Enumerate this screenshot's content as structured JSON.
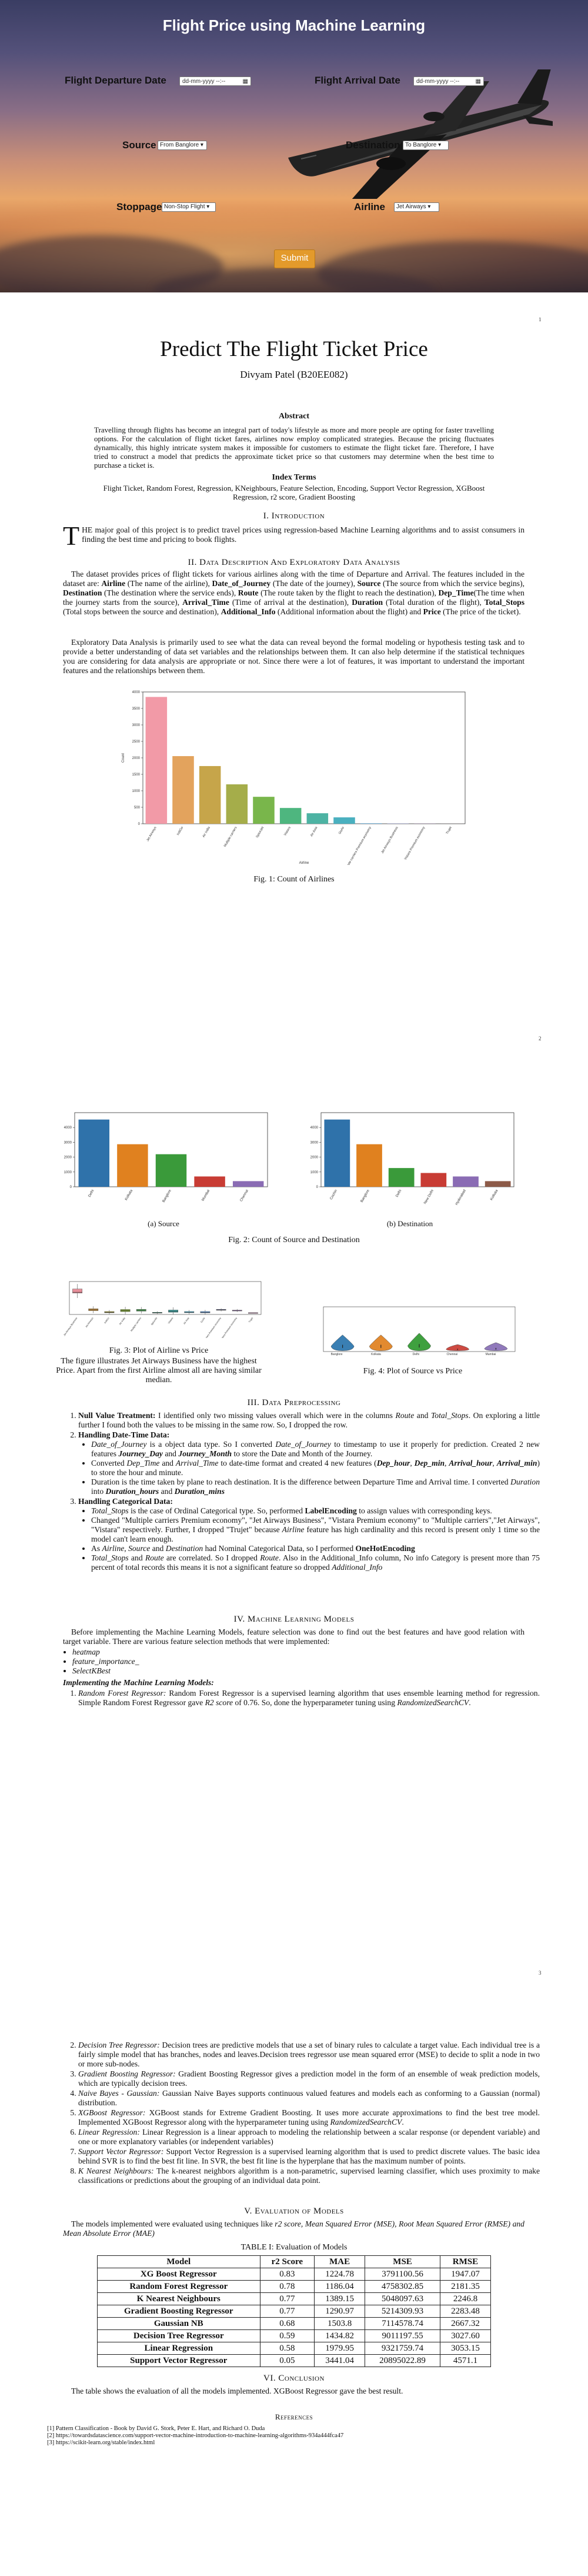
{
  "form": {
    "title": "Flight Price using Machine Learning",
    "departure_label": "Flight Departure Date",
    "departure_placeholder": "dd-mm-yyyy --:--",
    "arrival_label": "Flight Arrival Date",
    "arrival_placeholder": "dd-mm-yyyy --:--",
    "source_label": "Source",
    "source_value": "From Banglore",
    "destination_label": "Destination",
    "destination_value": "To Banglore",
    "stoppage_label": "Stoppage",
    "stoppage_value": "Non-Stop Flight",
    "airline_label": "Airline",
    "airline_value": "Jet Airways",
    "submit_label": "Submit"
  },
  "paper": {
    "page_numbers": [
      "1",
      "2",
      "3"
    ],
    "title": "Predict The Flight Ticket Price",
    "author": "Divyam Patel (B20EE082)",
    "abstract_head": "Abstract",
    "abstract": "Travelling through flights has become an integral part of today's lifestyle as more and more people are opting for faster travelling options. For the calculation of flight ticket fares, airlines now employ complicated strategies. Because the pricing fluctuates dynamically, this highly intricate system makes it impossible for customers to estimate the flight ticket fare. Therefore, I have tried to construct a model that predicts the approximate ticket price so that customers may determine when the best time to purchase a ticket is.",
    "index_head": "Index Terms",
    "index_terms": "Flight Ticket, Random Forest, Regression, KNeighbours, Feature Selection, Encoding, Support Vector Regression, XGBoost Regression, r2 score, Gradient Boosting",
    "sec1_num": "I.",
    "sec1_title": "Introduction",
    "intro_dropcap": "T",
    "intro_text": "HE major goal of this project is to predict travel prices using regression-based Machine Learning algorithms and to assist consumers in finding the best time and pricing to book flights.",
    "sec2_num": "II.",
    "sec2_title": "Data Description And Exploratory Data Analysis",
    "data_p1_a": "The dataset provides prices of flight tickets for various airlines along with the time of Departure and Arrival. The features included in the dataset are: ",
    "data_p1_b": "Airline",
    "data_p1_c": " (The name of the airline), ",
    "data_p1_d": "Date_of_Journey",
    "data_p1_e": " (The date of the journey), ",
    "data_p1_f": "Source",
    "data_p1_g": " (The source from which the service begins), ",
    "data_p1_h": "Destination",
    "data_p1_i": " (The destination where the service ends), ",
    "data_p1_j": "Route",
    "data_p1_k": " (The route taken by the flight to reach the destination), ",
    "data_p1_l": "Dep_Time",
    "data_p1_m": "(The time when the journey starts from the source), ",
    "data_p1_n": "Arrival_Time",
    "data_p1_o": " (Time of arrival at the destination), ",
    "data_p1_p": "Duration",
    "data_p1_q": " (Total duration of the flight), ",
    "data_p1_r": "Total_Stops",
    "data_p1_s": " (Total stops between the source and destination), ",
    "data_p1_t": "Additional_Info",
    "data_p1_u": " (Additional information about the flight) and ",
    "data_p1_v": "Price",
    "data_p1_w": " (The price of the ticket).",
    "data_p2": "Exploratory Data Analysis is primarily used to see what the data can reveal beyond the formal modeling or hypothesis testing task and to provide a better understanding of data set variables and the relationships between them. It can also help determine if the statistical techniques you are considering for data analysis are appropriate or not. Since there were a lot of features, it was important to understand the important features and the relationships between them.",
    "fig1_caption": "Fig. 1: Count of Airlines",
    "fig2a_caption": "(a) Source",
    "fig2b_caption": "(b) Destination",
    "fig2_caption": "Fig. 2: Count of Source and Destination",
    "fig3_caption": "Fig. 3: Plot of Airline vs Price",
    "fig3_note": "The figure illustrates Jet Airways Business have the highest Price. Apart from the first Airline almost all are having similar median.",
    "fig4_caption": "Fig. 4: Plot of Source vs Price",
    "sec3_num": "III.",
    "sec3_title": "Data Preprocessing",
    "pre1_head": "Null Value Treatment:",
    "pre1_text_a": " I identified only two missing values overall which were in the columns ",
    "pre1_text_b": "Route",
    "pre1_text_c": " and ",
    "pre1_text_d": "Total_Stops",
    "pre1_text_e": ". On exploring a little further I found both the values to be missing in the same row. So, I dropped the row.",
    "pre2_head": "Handling Date-Time Data:",
    "pre2_b1_a": "Date_of_Journey",
    "pre2_b1_b": " is a object data type. So I converted ",
    "pre2_b1_c": "Date_of_Journey",
    "pre2_b1_d": " to timestamp to use it properly for prediction. Created 2 new features ",
    "pre2_b1_e": "Journey_Day",
    "pre2_b1_f": " and ",
    "pre2_b1_g": "Journey_Month",
    "pre2_b1_h": " to store the Date and Month of the Journey.",
    "pre2_b2_a": "Converted ",
    "pre2_b2_b": "Dep_Time",
    "pre2_b2_c": " and ",
    "pre2_b2_d": "Arrival_Time",
    "pre2_b2_e": " to date-time format and created 4 new features (",
    "pre2_b2_f": "Dep_hour",
    "pre2_b2_g": ", ",
    "pre2_b2_h": "Dep_min",
    "pre2_b2_i": ", ",
    "pre2_b2_j": "Arrival_hour",
    "pre2_b2_k": ", ",
    "pre2_b2_l": "Arrival_min",
    "pre2_b2_m": ") to store the hour and minute.",
    "pre2_b3_a": "Duration is the time taken by plane to reach destination. It is the difference between Departure Time and Arrival time. I converted ",
    "pre2_b3_b": "Duration",
    "pre2_b3_c": " into ",
    "pre2_b3_d": "Duration_hours",
    "pre2_b3_e": " and ",
    "pre2_b3_f": "Duration_mins",
    "pre3_head": "Handling Categorical Data:",
    "pre3_b1_a": "Total_Stops",
    "pre3_b1_b": " is the case of Ordinal Categorical type. So, performed ",
    "pre3_b1_c": "LabelEncoding",
    "pre3_b1_d": " to assign values with corresponding keys.",
    "pre3_b2": "Changed \"Multiple carriers Premium economy\", \"Jet Airways Business\", \"Vistara Premium economy\" to \"Multiple carriers\",\"Jet Airways\", \"Vistara\" respectively. Further, I dropped \"Trujet\" because ",
    "pre3_b2_b": "Airline",
    "pre3_b2_c": " feature has high cardinality and this record is present only 1 time so the model can't learn enough.",
    "pre3_b3_a": "As ",
    "pre3_b3_b": "Airline",
    "pre3_b3_c": ", ",
    "pre3_b3_d": "Source",
    "pre3_b3_e": " and ",
    "pre3_b3_f": "Destination",
    "pre3_b3_g": " had Nominal Categorical Data, so I performed ",
    "pre3_b3_h": "OneHotEncoding",
    "pre3_b4_a": "Total_Stops",
    "pre3_b4_b": " and ",
    "pre3_b4_c": "Route",
    "pre3_b4_d": " are correlated. So I dropped ",
    "pre3_b4_e": "Route",
    "pre3_b4_f": ". Also in the Additional_Info column, No info Category is present more than 75 percent of total records this means it is not a significant feature so dropped ",
    "pre3_b4_g": "Additional_Info",
    "sec4_num": "IV.",
    "sec4_title": "Machine Learning Models",
    "ml_intro": "Before implementing the Machine Learning Models, feature selection was done to find out the best features and have good relation with target variable. There are various feature selection methods that were implemented:",
    "ml_feat": [
      "heatmap",
      "feature_importance_",
      "SelectKBest"
    ],
    "ml_impl_head": "Implementing the Machine Learning Models:",
    "m1_head": "Random Forest Regressor:",
    "m1_text_a": " Random Forest Regressor is a supervised learning algorithm that uses ensemble learning method for regression. Simple Random Forest Regressor gave ",
    "m1_text_b": "R2 score",
    "m1_text_c": " of 0.76. So, done the hyperparameter tuning using ",
    "m1_text_d": "RandomizedSearchCV",
    "m1_text_e": ".",
    "m2_head": "Decision Tree Regressor:",
    "m2_text": " Decision trees are predictive models that use a set of binary rules to calculate a target value. Each individual tree is a fairly simple model that has branches, nodes and leaves.Decision trees regressor use mean squared error (MSE) to decide to split a node in two or more sub-nodes.",
    "m3_head": "Gradient Boosting Regressor:",
    "m3_text": " Gradient Boosting Regressor gives a prediction model in the form of an ensemble of weak prediction models, which are typically decision trees.",
    "m4_head": "Naive Bayes - Gaussian:",
    "m4_text": " Gaussian Naive Bayes supports continuous valued features and models each as conforming to a Gaussian (normal) distribution.",
    "m5_head": "XGBoost Regressor:",
    "m5_text_a": " XGBoost stands for Extreme Gradient Boosting. It uses more accurate approximations to find the best tree model. Implemented XGBoost Regressor along with the hyperparameter tuning using ",
    "m5_text_b": "RandomizedSearchCV",
    "m5_text_c": ".",
    "m6_head": "Linear Regression:",
    "m6_text": " Linear Regression is a linear approach to modeling the relationship between a scalar response (or dependent variable) and one or more explanatory variables (or independent variables)",
    "m7_head": "Support Vector Regressor:",
    "m7_text": " Support Vector Regression is a supervised learning algorithm that is used to predict discrete values. The basic idea behind SVR is to find the best fit line. In SVR, the best fit line is the hyperplane that has the maximum number of points.",
    "m8_head": "K Nearest Neighbours:",
    "m8_text": " The k-nearest neighbors algorithm is a non-parametric, supervised learning classifier, which uses proximity to make classifications or predictions about the grouping of an individual data point.",
    "sec5_num": "V.",
    "sec5_title": "Evaluation of Models",
    "eval_intro_a": "The models implemented were evaluated using techniques like ",
    "eval_intro_b": "r2 score, Mean Squared Error (MSE), Root Mean Squared Error (RMSE) and Mean Absolute Error (MAE)",
    "table_caption": "TABLE I: Evaluation of Models",
    "table_headers": [
      "Model",
      "r2 Score",
      "MAE",
      "MSE",
      "RMSE"
    ],
    "table_rows": [
      [
        "XG Boost Regressor",
        "0.83",
        "1224.78",
        "3791100.56",
        "1947.07"
      ],
      [
        "Random Forest Regressor",
        "0.78",
        "1186.04",
        "4758302.85",
        "2181.35"
      ],
      [
        "K Nearest Neighbours",
        "0.77",
        "1389.15",
        "5048097.63",
        "2246.8"
      ],
      [
        "Gradient Boosting Regressor",
        "0.77",
        "1290.97",
        "5214309.93",
        "2283.48"
      ],
      [
        "Gaussian NB",
        "0.68",
        "1503.8",
        "7114578.74",
        "2667.32"
      ],
      [
        "Decision Tree Regressor",
        "0.59",
        "1434.82",
        "9011197.55",
        "3027.60"
      ],
      [
        "Linear Regression",
        "0.58",
        "1979.95",
        "9321759.74",
        "3053.15"
      ],
      [
        "Support Vector Regressor",
        "0.05",
        "3441.04",
        "20895022.89",
        "4571.1"
      ]
    ],
    "sec6_num": "VI.",
    "sec6_title": "Conclusion",
    "conclusion": "The table shows the evaluation of all the models implemented. XGBoost Regressor gave the best result.",
    "refs_head": "References",
    "refs": [
      "[1]  Pattern Classification - Book by David G. Stork, Peter E. Hart, and Richard O. Duda",
      "[2]  https://towardsdatascience.com/support-vector-machine-introduction-to-machine-learning-algorithms-934a444fca47",
      "[3]  https://scikit-learn.org/stable/index.html"
    ]
  },
  "chart_data": [
    {
      "type": "bar",
      "title": "Count of Airlines",
      "xlabel": "Airline",
      "ylabel": "Count",
      "categories": [
        "Jet Airways",
        "IndiGo",
        "Air India",
        "Multiple carriers",
        "SpiceJet",
        "Vistara",
        "Air Asia",
        "GoAir",
        "Multiple carriers Premium economy",
        "Jet Airways Business",
        "Vistara Premium economy",
        "Trujet"
      ],
      "values": [
        3849,
        2053,
        1751,
        1196,
        818,
        479,
        319,
        194,
        13,
        6,
        3,
        1
      ],
      "colors": [
        "#f29aa7",
        "#e3a35d",
        "#c6a54a",
        "#a5ad4a",
        "#79b64b",
        "#4eb67f",
        "#4db3a3",
        "#4ab0bf",
        "#58a6d8",
        "#8e9ae6",
        "#c28be0",
        "#e787c6"
      ],
      "ylim": [
        0,
        4000
      ],
      "yticks": [
        0,
        500,
        1000,
        1500,
        2000,
        2500,
        3000,
        3500,
        4000
      ]
    },
    {
      "type": "bar",
      "title": "Source",
      "categories": [
        "Delhi",
        "Kolkata",
        "Banglore",
        "Mumbai",
        "Chennai"
      ],
      "values": [
        4536,
        2871,
        2197,
        697,
        381
      ],
      "colors": [
        "#2f72aa",
        "#e0811f",
        "#3a9a3a",
        "#c83c34",
        "#8a6cb4"
      ],
      "ylim": [
        0,
        5000
      ],
      "yticks": [
        0,
        1000,
        2000,
        3000,
        4000
      ]
    },
    {
      "type": "bar",
      "title": "Destination",
      "categories": [
        "Cochin",
        "Banglore",
        "Delhi",
        "New Delhi",
        "Hyderabad",
        "Kolkata"
      ],
      "values": [
        4536,
        2871,
        1265,
        932,
        697,
        381
      ],
      "colors": [
        "#2f72aa",
        "#e0811f",
        "#3a9a3a",
        "#c83c34",
        "#8a6cb4",
        "#8c5a48"
      ],
      "ylim": [
        0,
        5000
      ],
      "yticks": [
        0,
        1000,
        2000,
        3000,
        4000
      ]
    },
    {
      "type": "box",
      "title": "Airline vs Price",
      "categories": [
        "Jet Airways Business",
        "Jet Airways",
        "IndiGo",
        "Air India",
        "Multiple carriers",
        "SpiceJet",
        "Vistara",
        "Air Asia",
        "GoAir",
        "Multiple carriers Premium economy",
        "Vistara Premium economy",
        "Trujet"
      ],
      "medians": [
        54000,
        11500,
        5000,
        9400,
        10200,
        3900,
        7900,
        5100,
        5100,
        11300,
        9000,
        4100
      ],
      "q1": [
        52000,
        9100,
        4200,
        6900,
        8000,
        3500,
        5400,
        4300,
        3900,
        10200,
        8500,
        4100
      ],
      "q3": [
        62000,
        14000,
        7200,
        12200,
        12600,
        5400,
        10900,
        7200,
        7200,
        12400,
        10600,
        4100
      ],
      "colors": [
        "#e78f9a",
        "#c7903f",
        "#a39a39",
        "#7e9f3a",
        "#4da856",
        "#45ab8a",
        "#44a7a6",
        "#46a3c2",
        "#5a94d2",
        "#8789d8",
        "#b47bd0",
        "#d97ebc"
      ],
      "ylim": [
        0,
        80000
      ]
    },
    {
      "type": "violin",
      "title": "Source vs Price",
      "categories": [
        "Banglore",
        "Kolkata",
        "Delhi",
        "Chennai",
        "Mumbai"
      ],
      "medians": [
        9300,
        9300,
        10300,
        3900,
        5000
      ],
      "colors": [
        "#3a7fb3",
        "#e28a2f",
        "#3fa03f",
        "#cd4a42",
        "#9079bb"
      ],
      "ylim": [
        0,
        80000
      ]
    }
  ]
}
